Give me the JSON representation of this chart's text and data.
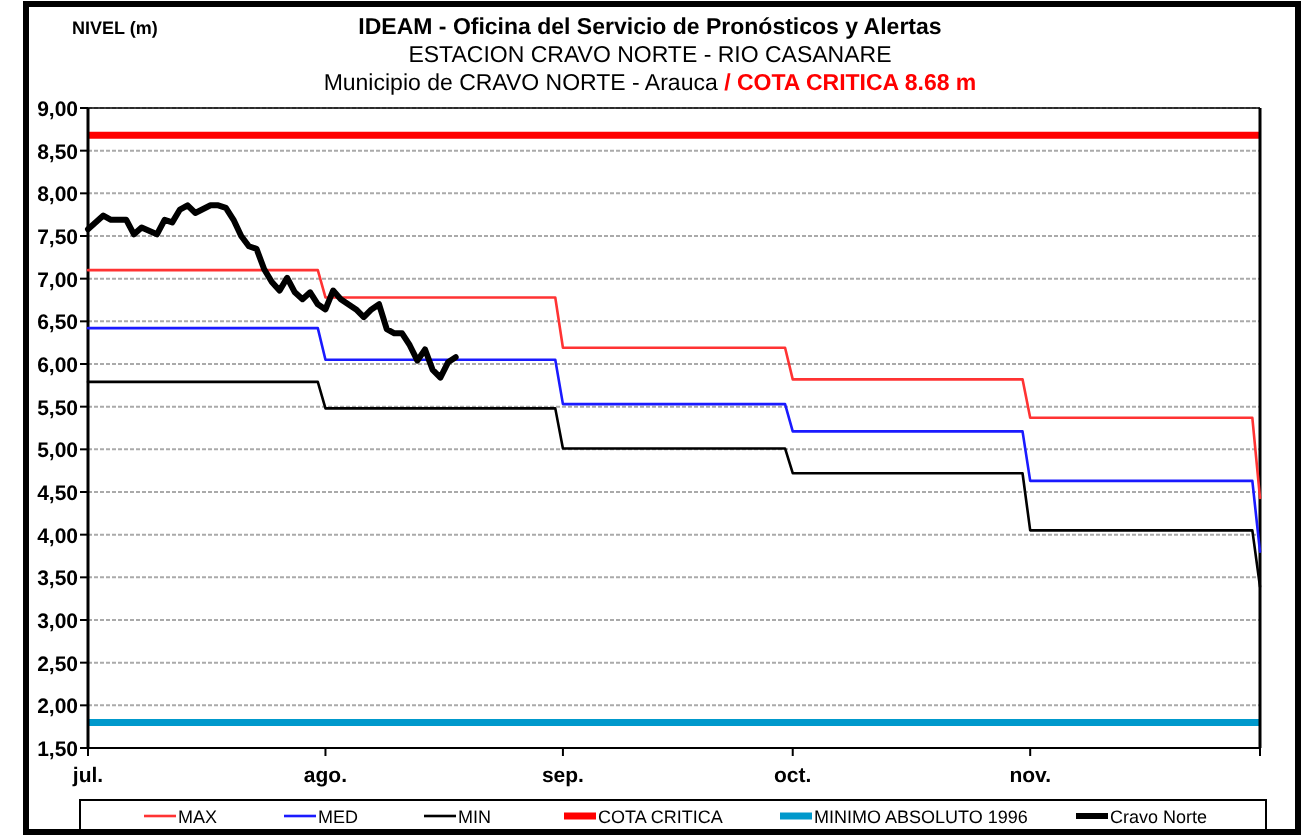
{
  "chart_data": {
    "type": "line",
    "title": "IDEAM - Oficina del Servicio de Pronósticos y Alertas",
    "subtitle": "ESTACION CRAVO NORTE - RIO CASANARE\nMunicipio de CRAVO NORTE - Arauca / COTA CRITICA 8.68 m",
    "ylabel": "NIVEL (m)",
    "xlim": [
      "--07-01",
      "--12-01"
    ],
    "xticks": [
      {
        "value": "--07-01",
        "label": "jul."
      },
      {
        "value": "--08-01",
        "label": "ago."
      },
      {
        "value": "--09-01",
        "label": "sep."
      },
      {
        "value": "--10-01",
        "label": "oct."
      },
      {
        "value": "--11-01",
        "label": "nov."
      },
      {
        "value": "--12-01",
        "label": null
      }
    ],
    "ylim": [
      1.5,
      9
    ],
    "yticks": [
      {
        "value": 1.5,
        "label": "1,50"
      },
      {
        "value": 2,
        "label": "2,00"
      },
      {
        "value": 2.5,
        "label": "2,50"
      },
      {
        "value": 3,
        "label": "3,00"
      },
      {
        "value": 3.5,
        "label": "3,50"
      },
      {
        "value": 4,
        "label": "4,00"
      },
      {
        "value": 4.5,
        "label": "4,50"
      },
      {
        "value": 5,
        "label": "5,00"
      },
      {
        "value": 5.5,
        "label": "5,50"
      },
      {
        "value": 6,
        "label": "6,00"
      },
      {
        "value": 6.5,
        "label": "6,50"
      },
      {
        "value": 7,
        "label": "7,00"
      },
      {
        "value": 7.5,
        "label": "7,50"
      },
      {
        "value": 8,
        "label": "8,00"
      },
      {
        "value": 8.5,
        "label": "8,50"
      },
      {
        "value": 9,
        "label": "9,00"
      }
    ],
    "grid": "y",
    "legend": "bottom",
    "marker": "none",
    "ref_lines": [
      {
        "axis": "y",
        "value": 8.68,
        "label": "COTA CRITICA",
        "color": "#ff0000"
      },
      {
        "axis": "y",
        "value": 1.8,
        "label": "MINIMO ABSOLUTO 1996",
        "color": "#0099cc"
      }
    ],
    "series": [
      {
        "name": "MAX",
        "color": "#ff3333",
        "x": [
          "--07-01",
          "--07-31",
          "--08-01",
          "--08-31",
          "--09-01",
          "--09-30",
          "--10-01",
          "--10-31",
          "--11-01",
          "--11-30",
          "--12-01"
        ],
        "values": [
          7.1,
          7.1,
          6.78,
          6.78,
          6.19,
          6.19,
          5.82,
          5.82,
          5.37,
          5.37,
          4.43
        ]
      },
      {
        "name": "MED",
        "color": "#1a1aff",
        "x": [
          "--07-01",
          "--07-31",
          "--08-01",
          "--08-31",
          "--09-01",
          "--09-30",
          "--10-01",
          "--10-31",
          "--11-01",
          "--11-30",
          "--12-01"
        ],
        "values": [
          6.42,
          6.42,
          6.05,
          6.05,
          5.53,
          5.53,
          5.21,
          5.21,
          4.63,
          4.63,
          3.8
        ]
      },
      {
        "name": "MIN",
        "color": "#000000",
        "x": [
          "--07-01",
          "--07-31",
          "--08-01",
          "--08-31",
          "--09-01",
          "--09-30",
          "--10-01",
          "--10-31",
          "--11-01",
          "--11-30",
          "--12-01"
        ],
        "values": [
          5.79,
          5.79,
          5.48,
          5.48,
          5.01,
          5.01,
          4.72,
          4.72,
          4.05,
          4.05,
          3.39
        ]
      },
      {
        "name": "Cravo Norte",
        "color": "#000000",
        "x": [
          "--07-01",
          "--07-03",
          "--07-04",
          "--07-06",
          "--07-07",
          "--07-08",
          "--07-10",
          "--07-11",
          "--07-12",
          "--07-13",
          "--07-14",
          "--07-15",
          "--07-17",
          "--07-18",
          "--07-19",
          "--07-20",
          "--07-21",
          "--07-22",
          "--07-23",
          "--07-24",
          "--07-25",
          "--07-26",
          "--07-27",
          "--07-28",
          "--07-29",
          "--07-30",
          "--07-31",
          "--08-01",
          "--08-02",
          "--08-03",
          "--08-05",
          "--08-06",
          "--08-07",
          "--08-08",
          "--08-09",
          "--08-10",
          "--08-11",
          "--08-12",
          "--08-13",
          "--08-14",
          "--08-15",
          "--08-16",
          "--08-17",
          "--08-18"
        ],
        "values": [
          7.58,
          7.74,
          7.69,
          7.69,
          7.52,
          7.6,
          7.52,
          7.69,
          7.66,
          7.81,
          7.86,
          7.77,
          7.86,
          7.86,
          7.83,
          7.69,
          7.5,
          7.38,
          7.35,
          7.11,
          6.96,
          6.86,
          7.01,
          6.84,
          6.76,
          6.84,
          6.7,
          6.64,
          6.86,
          6.76,
          6.64,
          6.55,
          6.64,
          6.7,
          6.41,
          6.36,
          6.36,
          6.22,
          6.04,
          6.17,
          5.93,
          5.84,
          6.02,
          6.08
        ]
      }
    ]
  }
}
